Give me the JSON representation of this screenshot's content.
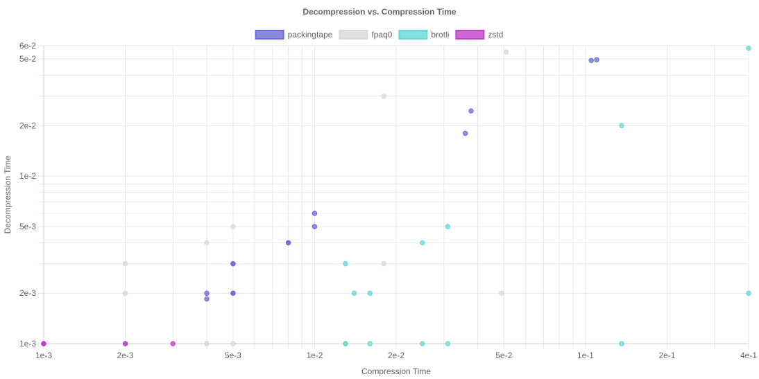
{
  "chart_data": {
    "type": "scatter",
    "title": "Decompression vs. Compression Time",
    "xlabel": "Compression Time",
    "ylabel": "Decompression Time",
    "xscale": "log",
    "yscale": "log",
    "xlim": [
      0.001,
      0.4
    ],
    "ylim": [
      0.001,
      0.06
    ],
    "grid": true,
    "legend_position": "top-center",
    "x_ticks": [
      {
        "value": 0.001,
        "label": "1e-3"
      },
      {
        "value": 0.002,
        "label": "2e-3"
      },
      {
        "value": 0.005,
        "label": "5e-3"
      },
      {
        "value": 0.01,
        "label": "1e-2"
      },
      {
        "value": 0.02,
        "label": "2e-2"
      },
      {
        "value": 0.05,
        "label": "5e-2"
      },
      {
        "value": 0.1,
        "label": "1e-1"
      },
      {
        "value": 0.2,
        "label": "2e-1"
      },
      {
        "value": 0.4,
        "label": "4e-1"
      }
    ],
    "y_ticks": [
      {
        "value": 0.001,
        "label": "1e-3"
      },
      {
        "value": 0.002,
        "label": "2e-3"
      },
      {
        "value": 0.005,
        "label": "5e-3"
      },
      {
        "value": 0.01,
        "label": "1e-2"
      },
      {
        "value": 0.02,
        "label": "2e-2"
      },
      {
        "value": 0.05,
        "label": "5e-2"
      },
      {
        "value": 0.06,
        "label": "6e-2"
      }
    ],
    "series": [
      {
        "name": "packingtape",
        "color": "#6a6ad8",
        "points": [
          {
            "x": 0.105,
            "y": 0.049
          },
          {
            "x": 0.11,
            "y": 0.0495
          },
          {
            "x": 0.0378,
            "y": 0.0245
          },
          {
            "x": 0.036,
            "y": 0.018
          },
          {
            "x": 0.01,
            "y": 0.006
          },
          {
            "x": 0.01,
            "y": 0.005
          },
          {
            "x": 0.008,
            "y": 0.004
          },
          {
            "x": 0.008,
            "y": 0.004
          },
          {
            "x": 0.005,
            "y": 0.003
          },
          {
            "x": 0.005,
            "y": 0.003
          },
          {
            "x": 0.005,
            "y": 0.002
          },
          {
            "x": 0.005,
            "y": 0.002
          },
          {
            "x": 0.004,
            "y": 0.002
          },
          {
            "x": 0.004,
            "y": 0.00185
          },
          {
            "x": 0.002,
            "y": 0.001
          },
          {
            "x": 0.001,
            "y": 0.001
          }
        ]
      },
      {
        "name": "fpaq0",
        "color": "#d9d9d9",
        "points": [
          {
            "x": 0.051,
            "y": 0.055
          },
          {
            "x": 0.018,
            "y": 0.03
          },
          {
            "x": 0.005,
            "y": 0.005
          },
          {
            "x": 0.004,
            "y": 0.004
          },
          {
            "x": 0.002,
            "y": 0.003
          },
          {
            "x": 0.018,
            "y": 0.003
          },
          {
            "x": 0.002,
            "y": 0.002
          },
          {
            "x": 0.002,
            "y": 0.002
          },
          {
            "x": 0.049,
            "y": 0.002
          },
          {
            "x": 0.004,
            "y": 0.001
          },
          {
            "x": 0.005,
            "y": 0.001
          }
        ]
      },
      {
        "name": "brotli",
        "color": "#66d9d9",
        "points": [
          {
            "x": 0.4,
            "y": 0.058
          },
          {
            "x": 0.136,
            "y": 0.02
          },
          {
            "x": 0.031,
            "y": 0.005
          },
          {
            "x": 0.025,
            "y": 0.004
          },
          {
            "x": 0.013,
            "y": 0.003
          },
          {
            "x": 0.014,
            "y": 0.002
          },
          {
            "x": 0.016,
            "y": 0.002
          },
          {
            "x": 0.4,
            "y": 0.002
          },
          {
            "x": 0.013,
            "y": 0.001
          },
          {
            "x": 0.013,
            "y": 0.001
          },
          {
            "x": 0.016,
            "y": 0.001
          },
          {
            "x": 0.025,
            "y": 0.001
          },
          {
            "x": 0.031,
            "y": 0.001
          },
          {
            "x": 0.136,
            "y": 0.001
          }
        ]
      },
      {
        "name": "zstd",
        "color": "#c040c8",
        "points": [
          {
            "x": 0.001,
            "y": 0.001
          },
          {
            "x": 0.001,
            "y": 0.001
          },
          {
            "x": 0.002,
            "y": 0.001
          },
          {
            "x": 0.003,
            "y": 0.001
          }
        ]
      }
    ]
  }
}
